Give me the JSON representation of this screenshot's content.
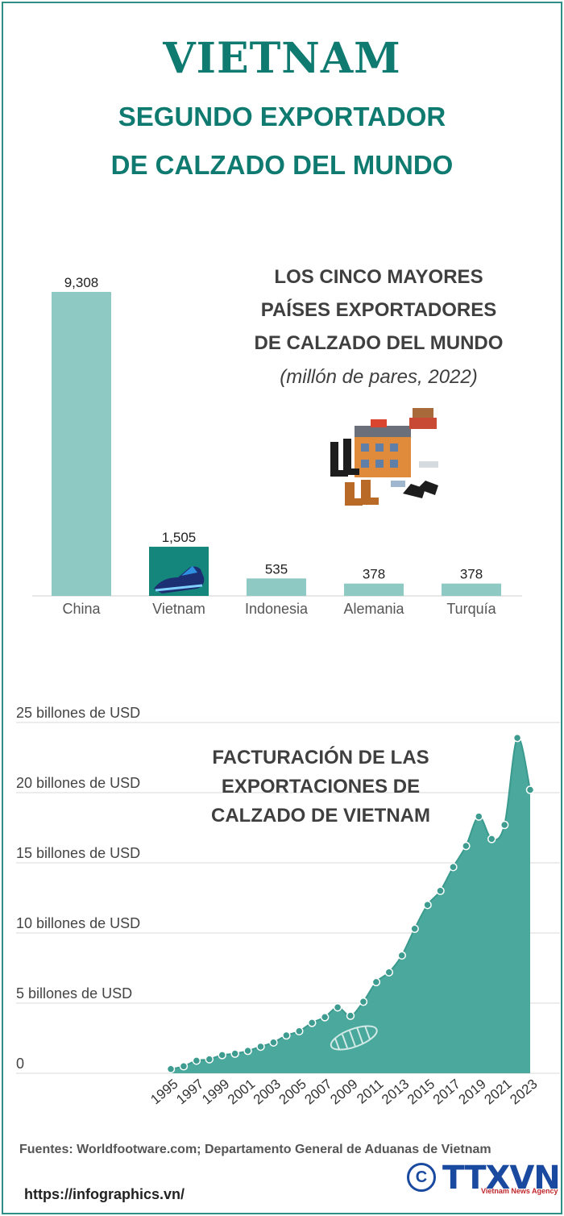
{
  "header": {
    "title": "VIETNAM",
    "subtitle_line1": "SEGUNDO EXPORTADOR",
    "subtitle_line2": "DE CALZADO DEL MUNDO"
  },
  "bar_section": {
    "title_line1": "LOS CINCO MAYORES",
    "title_line2": "PAÍSES EXPORTADORES",
    "title_line3": "DE CALZADO DEL MUNDO",
    "unit": "(millón de pares, 2022)"
  },
  "area_section": {
    "title_line1": "FACTURACIÓN DE LAS",
    "title_line2": "EXPORTACIONES DE",
    "title_line3": "CALZADO DE VIETNAM"
  },
  "footer": {
    "sources": "Fuentes: Worldfootware.com; Departamento General de Aduanas de Vietnam",
    "url": "https://infographics.vn/",
    "logo_text": "TTXVN",
    "logo_sub": "Vietnam News Agency",
    "logo_symbol": "C"
  },
  "colors": {
    "accent": "#0f7a70",
    "bar": "#8fc9c3",
    "highlight_bar": "#14867b",
    "area": "#4aa89c",
    "marker": "#3d9b8f"
  },
  "icons": [
    "shoe-factory-illustration",
    "sneaker-icon",
    "shoe-sole-icon"
  ],
  "chart_data": [
    {
      "type": "bar",
      "categories": [
        "China",
        "Vietnam",
        "Indonesia",
        "Alemania",
        "Turquía"
      ],
      "values": [
        9308,
        1505,
        535,
        378,
        378
      ],
      "value_labels": [
        "9,308",
        "1,505",
        "535",
        "378",
        "378"
      ],
      "highlight": "Vietnam",
      "ylim": [
        0,
        9308
      ]
    },
    {
      "type": "area",
      "x": [
        1995,
        1996,
        1997,
        1998,
        1999,
        2000,
        2001,
        2002,
        2003,
        2004,
        2005,
        2006,
        2007,
        2008,
        2009,
        2010,
        2011,
        2012,
        2013,
        2014,
        2015,
        2016,
        2017,
        2018,
        2019,
        2020,
        2021,
        2022,
        2023
      ],
      "values": [
        0.3,
        0.5,
        0.9,
        1.0,
        1.3,
        1.4,
        1.6,
        1.9,
        2.2,
        2.7,
        3.0,
        3.6,
        4.0,
        4.7,
        4.1,
        5.1,
        6.5,
        7.2,
        8.4,
        10.3,
        12.0,
        13.0,
        14.7,
        16.2,
        18.3,
        16.7,
        17.7,
        23.9,
        20.2
      ],
      "x_tick_labels": [
        "1995",
        "1997",
        "1999",
        "2001",
        "2003",
        "2005",
        "2007",
        "2009",
        "2011",
        "2013",
        "2015",
        "2017",
        "2019",
        "2021",
        "2023"
      ],
      "y_ticks": [
        0,
        5,
        10,
        15,
        20,
        25
      ],
      "y_tick_labels": [
        "0",
        "5 billones de USD",
        "10 billones de USD",
        "15 billones de USD",
        "20 billones de USD",
        "25 billones de USD"
      ],
      "ylim": [
        0,
        25
      ],
      "grid": true
    }
  ]
}
